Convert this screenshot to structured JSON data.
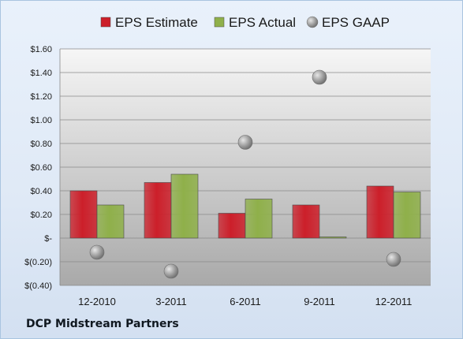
{
  "company_name": "DCP Midstream Partners",
  "chart_data": {
    "type": "bar",
    "categories": [
      "12-2010",
      "3-2011",
      "6-2011",
      "9-2011",
      "12-2011"
    ],
    "series": [
      {
        "name": "EPS Estimate",
        "type": "bar",
        "color": "#cc1f2a",
        "values": [
          0.4,
          0.47,
          0.21,
          0.28,
          0.44
        ]
      },
      {
        "name": "EPS Actual",
        "type": "bar",
        "color": "#8fb04a",
        "values": [
          0.28,
          0.54,
          0.33,
          0.01,
          0.39
        ]
      },
      {
        "name": "EPS GAAP",
        "type": "scatter",
        "color": "#9a9a9a",
        "values": [
          -0.12,
          -0.28,
          0.81,
          1.36,
          -0.18
        ]
      }
    ],
    "ylim": [
      -0.4,
      1.6
    ],
    "yticks": [
      1.6,
      1.4,
      1.2,
      1.0,
      0.8,
      0.6,
      0.4,
      0.2,
      0.0,
      -0.2,
      -0.4
    ],
    "ytick_labels": [
      "$1.60",
      "$1.40",
      "$1.20",
      "$1.00",
      "$0.80",
      "$0.60",
      "$0.40",
      "$0.20",
      "$-",
      "$(0.20)",
      "$(0.40)"
    ],
    "legend_position": "top",
    "grid": true
  }
}
